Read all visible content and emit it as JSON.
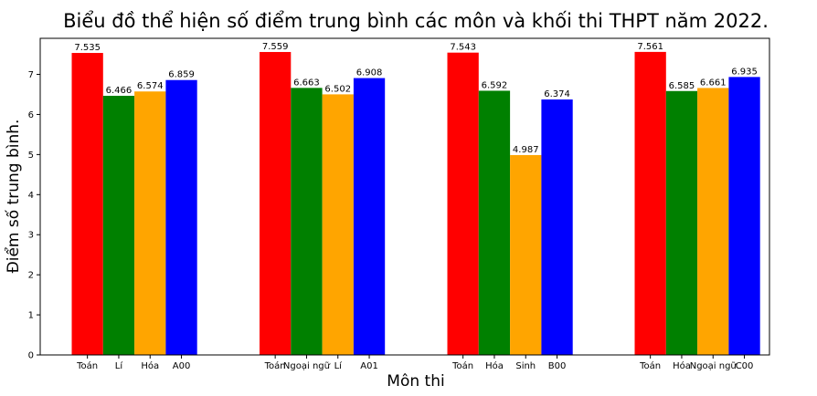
{
  "chart_data": {
    "type": "bar",
    "title": "Biểu đồ thể hiện số điểm trung bình các môn và khối thi THPT năm 2022.",
    "xlabel": "Môn thi",
    "ylabel": "Điểm số trung bình.",
    "ylim": [
      0,
      7.9
    ],
    "yticks": [
      "0",
      "1",
      "2",
      "3",
      "4",
      "5",
      "6",
      "7"
    ],
    "grid": false,
    "groups": [
      {
        "bars": [
          {
            "label": "Toán",
            "value": 7.535,
            "value_label": "7.535",
            "color": "#ff0000"
          },
          {
            "label": "Lí",
            "value": 6.466,
            "value_label": "6.466",
            "color": "#008000"
          },
          {
            "label": "Hóa",
            "value": 6.574,
            "value_label": "6.574",
            "color": "#ffa500"
          },
          {
            "label": "A00",
            "value": 6.859,
            "value_label": "6.859",
            "color": "#0000ff"
          }
        ]
      },
      {
        "bars": [
          {
            "label": "Toán",
            "value": 7.559,
            "value_label": "7.559",
            "color": "#ff0000"
          },
          {
            "label": "Ngoại ngữ",
            "value": 6.663,
            "value_label": "6.663",
            "color": "#008000"
          },
          {
            "label": "Lí",
            "value": 6.502,
            "value_label": "6.502",
            "color": "#ffa500"
          },
          {
            "label": "A01",
            "value": 6.908,
            "value_label": "6.908",
            "color": "#0000ff"
          }
        ]
      },
      {
        "bars": [
          {
            "label": "Toán",
            "value": 7.543,
            "value_label": "7.543",
            "color": "#ff0000"
          },
          {
            "label": "Hóa",
            "value": 6.592,
            "value_label": "6.592",
            "color": "#008000"
          },
          {
            "label": "Sinh",
            "value": 4.987,
            "value_label": "4.987",
            "color": "#ffa500"
          },
          {
            "label": "B00",
            "value": 6.374,
            "value_label": "6.374",
            "color": "#0000ff"
          }
        ]
      },
      {
        "bars": [
          {
            "label": "Toán",
            "value": 7.561,
            "value_label": "7.561",
            "color": "#ff0000"
          },
          {
            "label": "Hóa",
            "value": 6.585,
            "value_label": "6.585",
            "color": "#008000"
          },
          {
            "label": "Ngoại ngữ",
            "value": 6.661,
            "value_label": "6.661",
            "color": "#ffa500"
          },
          {
            "label": "C00",
            "value": 6.935,
            "value_label": "6.935",
            "color": "#0000ff"
          }
        ]
      }
    ]
  }
}
